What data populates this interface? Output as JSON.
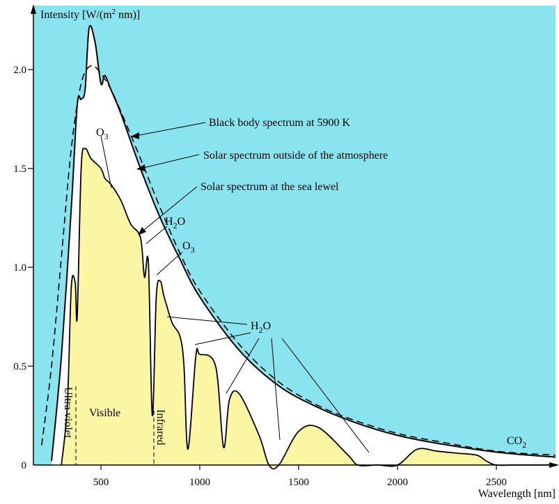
{
  "chart_data": {
    "type": "line",
    "title": "",
    "ylabel_prefix": "Intensity [W/(m",
    "ylabel_sup": "2",
    "ylabel_suffix": " nm)]",
    "xlabel": "Wavelength [nm]",
    "xlim": [
      200,
      2800
    ],
    "ylim": [
      0,
      2.3
    ],
    "x_ticks": [
      "500",
      "1000",
      "1500",
      "2000",
      "2500"
    ],
    "y_ticks": [
      "0",
      "0.5",
      "1.0",
      "1.5",
      "2.0"
    ],
    "colors": {
      "atmosphere_absorbed": "#8ae4f0",
      "sea_level": "#fbf6a4",
      "outside": "#ffffff",
      "line": "#000000"
    },
    "series": [
      {
        "name": "Black body spectrum at 5900 K",
        "style": "dashed",
        "x": [
          200,
          250,
          300,
          350,
          400,
          450,
          500,
          550,
          600,
          700,
          800,
          900,
          1000,
          1200,
          1400,
          1600,
          1800,
          2000,
          2200,
          2500,
          2800
        ],
        "y": [
          0.1,
          0.5,
          1.05,
          1.6,
          1.93,
          2.02,
          1.98,
          1.9,
          1.79,
          1.55,
          1.3,
          1.07,
          0.88,
          0.61,
          0.42,
          0.3,
          0.22,
          0.16,
          0.12,
          0.07,
          0.05
        ]
      },
      {
        "name": "Solar spectrum outside of the atmosphere",
        "style": "solid",
        "x": [
          250,
          300,
          350,
          380,
          400,
          420,
          440,
          470,
          500,
          520,
          550,
          600,
          700,
          800,
          900,
          1000,
          1200,
          1400,
          1600,
          1800,
          2000,
          2200,
          2500,
          2800
        ],
        "y": [
          0.02,
          0.55,
          1.3,
          1.82,
          1.85,
          1.9,
          2.21,
          2.14,
          1.93,
          1.97,
          1.9,
          1.78,
          1.5,
          1.25,
          1.04,
          0.85,
          0.58,
          0.4,
          0.29,
          0.21,
          0.15,
          0.11,
          0.065,
          0.04
        ]
      },
      {
        "name": "Solar spectrum at the sea lewel",
        "style": "solid",
        "x": [
          300,
          330,
          350,
          370,
          380,
          400,
          420,
          450,
          500,
          520,
          550,
          600,
          650,
          700,
          720,
          740,
          760,
          780,
          800,
          820,
          860,
          900,
          920,
          940,
          980,
          1000,
          1080,
          1120,
          1150,
          1200,
          1300,
          1350,
          1400,
          1500,
          1600,
          1750,
          1800,
          1900,
          2000,
          2100,
          2200,
          2300,
          2400,
          2450,
          2500,
          2600,
          2800
        ],
        "y": [
          0.0,
          0.3,
          0.9,
          0.92,
          0.75,
          1.5,
          1.6,
          1.55,
          1.5,
          1.45,
          1.42,
          1.34,
          1.22,
          1.15,
          0.95,
          1.02,
          0.25,
          0.85,
          0.93,
          0.85,
          0.72,
          0.65,
          0.5,
          0.08,
          0.55,
          0.56,
          0.5,
          0.09,
          0.33,
          0.36,
          0.15,
          0.0,
          0.0,
          0.17,
          0.19,
          0.05,
          0.0,
          0.0,
          0.0,
          0.08,
          0.07,
          0.06,
          0.05,
          0.02,
          0.0,
          0.0,
          0.0
        ]
      }
    ],
    "annotations": {
      "black_body": "Black body spectrum at 5900 K",
      "outside": "Solar spectrum outside of the atmosphere",
      "sea_level": "Solar spectrum at the sea lewel",
      "o3_a_base": "O",
      "o3_a_sub": "3",
      "h2o_a_pre": "H",
      "h2o_a_sub": "2",
      "h2o_a_post": "O",
      "o3_b_base": "O",
      "o3_b_sub": "3",
      "h2o_b_pre": "H",
      "h2o_b_sub": "2",
      "h2o_b_post": "O",
      "co2_base": "CO",
      "co2_sub": "2",
      "region_uv": "Ultra violet",
      "region_visible": "Visible",
      "region_ir": "Infrared"
    }
  }
}
